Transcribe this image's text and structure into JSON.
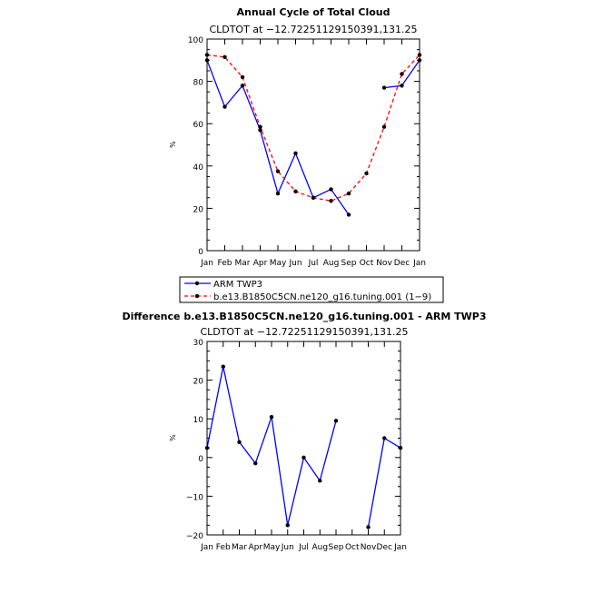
{
  "chart_data": [
    {
      "type": "line",
      "title": "Annual Cycle of Total Cloud",
      "subtitle": "CLDTOT at −12.72251129150391,131.25",
      "ylabel": "%",
      "ylim": [
        0,
        100
      ],
      "yticks": [
        "0",
        "20",
        "40",
        "60",
        "80",
        "100"
      ],
      "categories": [
        "Jan",
        "Feb",
        "Mar",
        "Apr",
        "May",
        "Jun",
        "Jul",
        "Aug",
        "Sep",
        "Oct",
        "Nov",
        "Dec",
        "Jan"
      ],
      "series": [
        {
          "name": "ARM TWP3",
          "color": "#0000ff",
          "dash": "solid",
          "values": [
            90,
            68,
            78,
            57,
            27,
            46,
            25,
            29,
            17,
            null,
            77,
            78,
            90
          ]
        },
        {
          "name": "b.e13.B1850C5CN.ne120_g16.tuning.001 (1−9)",
          "color": "#ff0000",
          "dash": "dashed",
          "values": [
            92.5,
            91.5,
            82,
            58.5,
            37.5,
            28,
            25,
            23.5,
            27,
            36.5,
            58.5,
            83.5,
            92.5
          ]
        }
      ],
      "legend_position": "bottom"
    },
    {
      "type": "line",
      "title": "Difference b.e13.B1850C5CN.ne120_g16.tuning.001 - ARM TWP3",
      "subtitle": "CLDTOT at −12.72251129150391,131.25",
      "ylabel": "%",
      "ylim": [
        -20,
        30
      ],
      "yticks": [
        "−20",
        "−10",
        "0",
        "10",
        "20",
        "30"
      ],
      "categories": [
        "Jan",
        "Feb",
        "Mar",
        "Apr",
        "May",
        "Jun",
        "Jul",
        "Aug",
        "Sep",
        "Oct",
        "Nov",
        "Dec",
        "Jan"
      ],
      "series": [
        {
          "color": "#0000ff",
          "dash": "solid",
          "values": [
            2.5,
            23.5,
            4,
            -1.5,
            10.5,
            -17.5,
            0,
            -6,
            9.5,
            null,
            -18,
            5,
            2.5
          ]
        }
      ]
    }
  ]
}
